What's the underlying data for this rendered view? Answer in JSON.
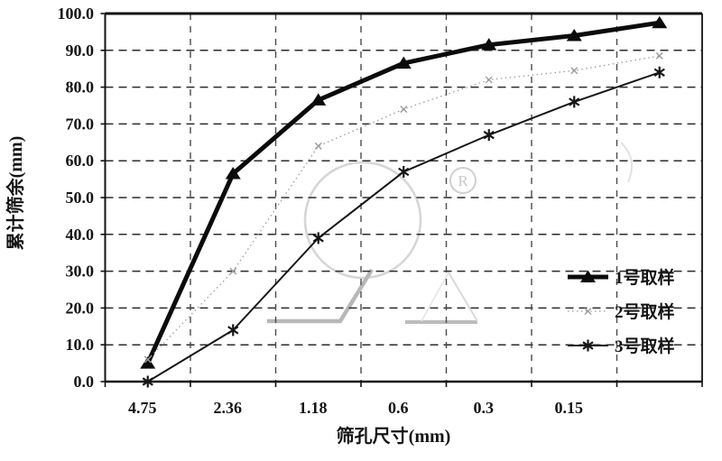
{
  "page": {
    "background": "#ffffff"
  },
  "chart_data": {
    "type": "line",
    "title": "",
    "xlabel": "筛孔尺寸(mm)",
    "ylabel": "累计筛余(mm)",
    "categories": [
      "4.75",
      "2.36",
      "1.18",
      "0.6",
      "0.3",
      "0.15",
      ""
    ],
    "yticks": [
      "0.0",
      "10.0",
      "20.0",
      "30.0",
      "40.0",
      "50.0",
      "60.0",
      "70.0",
      "80.0",
      "90.0",
      "100.0"
    ],
    "ylim": [
      0,
      100
    ],
    "ytick_step": 10,
    "grid": "dashed",
    "legend_position": "inside-right",
    "series": [
      {
        "name": "1号取样",
        "values": [
          5,
          56.5,
          76.5,
          86.5,
          91.5,
          94,
          97.5
        ],
        "color": "#0b0b0b",
        "line_width": 5,
        "dash": "",
        "marker": "triangle"
      },
      {
        "name": "2号取样",
        "values": [
          6,
          30,
          64,
          74,
          82,
          84.5,
          88.5
        ],
        "color": "#9c9c9c",
        "line_width": 1.3,
        "dash": "1.5 3.5",
        "marker": "x"
      },
      {
        "name": "3号取样",
        "values": [
          0,
          14,
          39,
          57,
          67,
          76,
          84
        ],
        "color": "#161616",
        "line_width": 2,
        "dash": "",
        "marker": "star"
      }
    ],
    "watermark": {
      "registered_symbol": "R"
    },
    "colors": {
      "grid": "#2b2b2b",
      "vgrid": "#4a4a4a",
      "border": "#111111",
      "watermark_gray": "#c6c6c6"
    }
  }
}
